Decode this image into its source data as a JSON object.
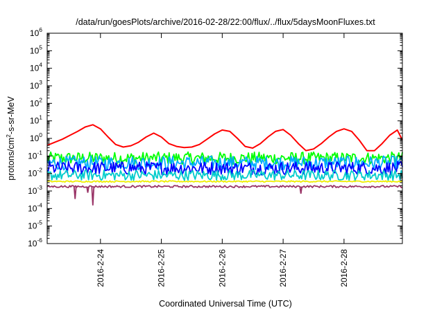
{
  "chart_data": {
    "type": "line",
    "title": "/data/run/goesPlots/archive/2016-02-28/22:00/flux/../flux/5daysMoonFluxes.txt",
    "xlabel": "Coordinated Universal Time (UTC)",
    "ylabel": "protons/cm²-s-sr-MeV",
    "ylabel_parts": {
      "pre": "protons/cm",
      "sup": "2",
      "post": "-s-sr-MeV"
    },
    "yscale": "log",
    "ylim": [
      1e-06,
      1000000
    ],
    "y_ticks": [
      {
        "base": "10",
        "exp": "-6",
        "value": 1e-06
      },
      {
        "base": "10",
        "exp": "-5",
        "value": 1e-05
      },
      {
        "base": "10",
        "exp": "-4",
        "value": 0.0001
      },
      {
        "base": "10",
        "exp": "-3",
        "value": 0.001
      },
      {
        "base": "10",
        "exp": "-2",
        "value": 0.01
      },
      {
        "base": "10",
        "exp": "-1",
        "value": 0.1
      },
      {
        "base": "10",
        "exp": "0",
        "value": 1
      },
      {
        "base": "10",
        "exp": "1",
        "value": 10
      },
      {
        "base": "10",
        "exp": "2",
        "value": 100
      },
      {
        "base": "10",
        "exp": "3",
        "value": 1000
      },
      {
        "base": "10",
        "exp": "4",
        "value": 10000
      },
      {
        "base": "10",
        "exp": "5",
        "value": 100000
      },
      {
        "base": "10",
        "exp": "6",
        "value": 1000000
      }
    ],
    "xlim": [
      "2016-02-23 03:00",
      "2016-02-28 23:00"
    ],
    "x_ticks": [
      "2016-2-24",
      "2016-2-25",
      "2016-2-26",
      "2016-2-27",
      "2016-2-28"
    ],
    "x_tick_values": [
      "2016-02-24 00:00",
      "2016-02-25 00:00",
      "2016-02-26 00:00",
      "2016-02-27 00:00",
      "2016-02-28 00:00"
    ],
    "grid": false,
    "series": [
      {
        "color": "#ff0000",
        "x": [
          "2016-02-23 03:00",
          "2016-02-23 06:00",
          "2016-02-23 09:00",
          "2016-02-23 12:00",
          "2016-02-23 15:00",
          "2016-02-23 18:00",
          "2016-02-23 21:00",
          "2016-02-24 00:00",
          "2016-02-24 03:00",
          "2016-02-24 06:00",
          "2016-02-24 09:00",
          "2016-02-24 12:00",
          "2016-02-24 15:00",
          "2016-02-24 18:00",
          "2016-02-24 21:00",
          "2016-02-25 00:00",
          "2016-02-25 03:00",
          "2016-02-25 06:00",
          "2016-02-25 09:00",
          "2016-02-25 12:00",
          "2016-02-25 15:00",
          "2016-02-25 18:00",
          "2016-02-25 21:00",
          "2016-02-26 00:00",
          "2016-02-26 03:00",
          "2016-02-26 06:00",
          "2016-02-26 09:00",
          "2016-02-26 12:00",
          "2016-02-26 15:00",
          "2016-02-26 18:00",
          "2016-02-26 21:00",
          "2016-02-27 00:00",
          "2016-02-27 03:00",
          "2016-02-27 06:00",
          "2016-02-27 09:00",
          "2016-02-27 12:00",
          "2016-02-27 15:00",
          "2016-02-27 18:00",
          "2016-02-27 21:00",
          "2016-02-28 00:00",
          "2016-02-28 03:00",
          "2016-02-28 06:00",
          "2016-02-28 09:00",
          "2016-02-28 12:00",
          "2016-02-28 15:00",
          "2016-02-28 18:00",
          "2016-02-28 21:00",
          "2016-02-28 23:00"
        ],
        "values": [
          0.4,
          0.6,
          0.9,
          1.5,
          2.5,
          4.5,
          6.0,
          3.5,
          1.2,
          0.45,
          0.32,
          0.38,
          0.6,
          1.2,
          2.0,
          1.2,
          0.5,
          0.35,
          0.3,
          0.32,
          0.45,
          0.9,
          1.8,
          3.0,
          2.5,
          1.0,
          0.35,
          0.28,
          0.5,
          1.2,
          2.5,
          3.2,
          1.5,
          0.5,
          0.2,
          0.25,
          0.5,
          1.2,
          2.5,
          3.5,
          2.5,
          0.8,
          0.2,
          0.2,
          0.5,
          1.5,
          3.0,
          0.8
        ]
      }
    ],
    "band_series": [
      {
        "color": "#00ff00",
        "center": 0.075,
        "spread": 0.35
      },
      {
        "color": "#00aaff",
        "center": 0.04,
        "spread": 0.4
      },
      {
        "color": "#0000ff",
        "center": 0.02,
        "spread": 0.38
      },
      {
        "color": "#00cccc",
        "center": 0.008,
        "spread": 0.3
      },
      {
        "color": "#eeee00",
        "center": 0.0035,
        "spread": 0.04
      },
      {
        "color": "#993366",
        "center": 0.0018,
        "spread": 0.06,
        "spikes": [
          {
            "x": "2016-02-23 14:00",
            "value": 0.00035
          },
          {
            "x": "2016-02-23 19:00",
            "value": 0.0008
          },
          {
            "x": "2016-02-23 21:00",
            "value": 0.00015
          },
          {
            "x": "2016-02-27 07:00",
            "value": 0.0007
          }
        ]
      }
    ]
  }
}
